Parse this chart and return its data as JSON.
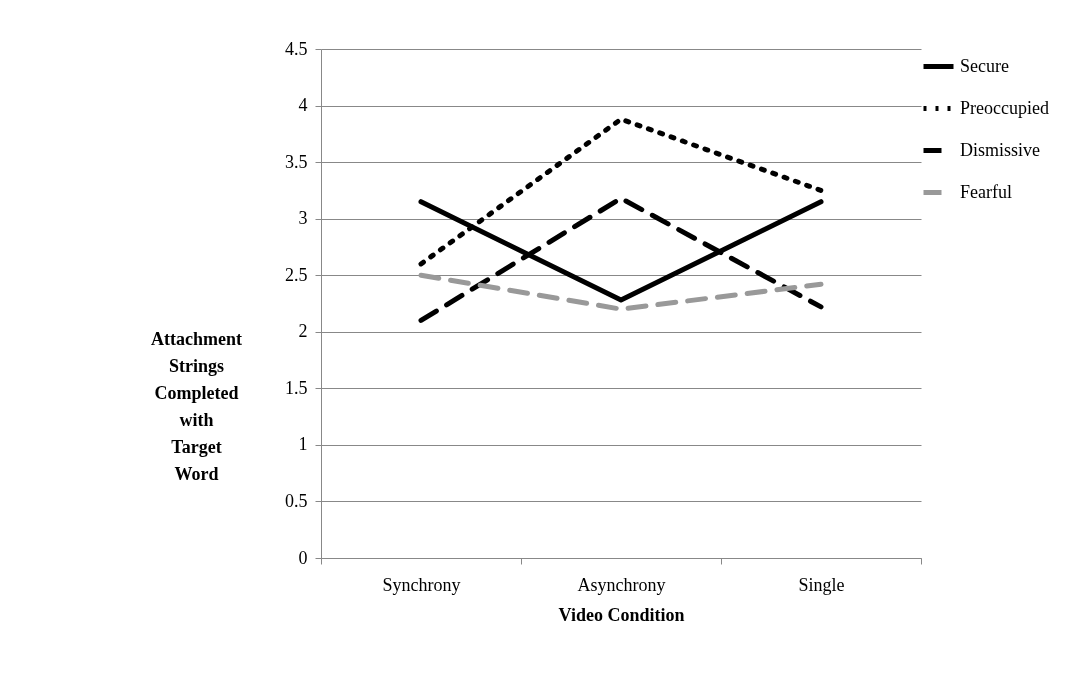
{
  "chart_data": {
    "type": "line",
    "xlabel": "Video Condition",
    "ylabel": "Attachment Strings Completed with Target Word",
    "categories": [
      "Synchrony",
      "Asynchrony",
      "Single"
    ],
    "ylim": [
      0,
      4.5
    ],
    "yticks": [
      0,
      0.5,
      1,
      1.5,
      2,
      2.5,
      3,
      3.5,
      4,
      4.5
    ],
    "grid": "y",
    "legend": "right",
    "series": [
      {
        "name": "Secure",
        "color": "#000000",
        "line_style": "solid",
        "values": [
          3.15,
          2.28,
          3.15
        ]
      },
      {
        "name": "Preoccupied",
        "color": "#000000",
        "line_style": "dotted",
        "values": [
          2.6,
          3.88,
          3.25
        ]
      },
      {
        "name": "Dismissive",
        "color": "#000000",
        "line_style": "dashed",
        "values": [
          2.1,
          3.18,
          2.22
        ]
      },
      {
        "name": "Fearful",
        "color": "#999999",
        "line_style": "dashed",
        "values": [
          2.5,
          2.2,
          2.42
        ]
      }
    ]
  }
}
